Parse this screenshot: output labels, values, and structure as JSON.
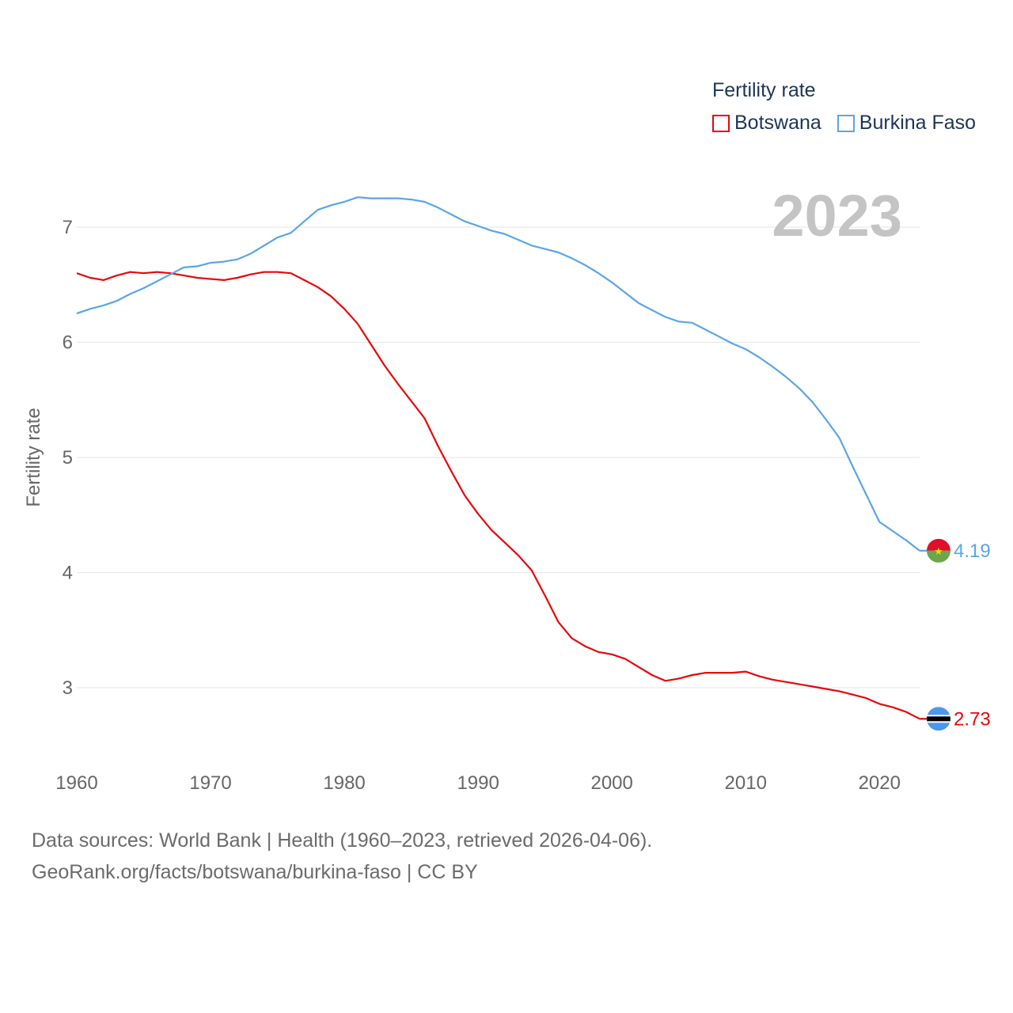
{
  "legend": {
    "title": "Fertility rate",
    "items": [
      {
        "name": "Botswana",
        "color": "#e8060b"
      },
      {
        "name": "Burkina Faso",
        "color": "#5aa5e6"
      }
    ]
  },
  "footer": {
    "line1": "Data sources: World Bank | Health (1960–2023, retrieved 2026-04-06).",
    "line2": "GeoRank.org/facts/botswana/burkina-faso | CC BY"
  },
  "chart_data": {
    "type": "line",
    "title": "",
    "year_overlay": "2023",
    "xlabel": "",
    "ylabel": "Fertility rate",
    "xlim": [
      1960,
      2023
    ],
    "ylim": [
      2.5,
      7.6
    ],
    "xticks": [
      1960,
      1970,
      1980,
      1990,
      2000,
      2010,
      2020
    ],
    "yticks": [
      3,
      4,
      5,
      6,
      7
    ],
    "grid": true,
    "x": [
      1960,
      1961,
      1962,
      1963,
      1964,
      1965,
      1966,
      1967,
      1968,
      1969,
      1970,
      1971,
      1972,
      1973,
      1974,
      1975,
      1976,
      1977,
      1978,
      1979,
      1980,
      1981,
      1982,
      1983,
      1984,
      1985,
      1986,
      1987,
      1988,
      1989,
      1990,
      1991,
      1992,
      1993,
      1994,
      1995,
      1996,
      1997,
      1998,
      1999,
      2000,
      2001,
      2002,
      2003,
      2004,
      2005,
      2006,
      2007,
      2008,
      2009,
      2010,
      2011,
      2012,
      2013,
      2014,
      2015,
      2016,
      2017,
      2018,
      2019,
      2020,
      2021,
      2022,
      2023
    ],
    "series": [
      {
        "name": "Botswana",
        "color": "#e8060b",
        "end_label": "2.73",
        "values": [
          6.6,
          6.56,
          6.54,
          6.58,
          6.61,
          6.6,
          6.61,
          6.6,
          6.58,
          6.56,
          6.55,
          6.54,
          6.56,
          6.59,
          6.61,
          6.61,
          6.6,
          6.54,
          6.48,
          6.4,
          6.29,
          6.16,
          5.98,
          5.8,
          5.64,
          5.49,
          5.34,
          5.1,
          4.88,
          4.67,
          4.51,
          4.37,
          4.26,
          4.15,
          4.02,
          3.8,
          3.57,
          3.43,
          3.36,
          3.31,
          3.29,
          3.25,
          3.18,
          3.11,
          3.06,
          3.08,
          3.11,
          3.13,
          3.13,
          3.13,
          3.14,
          3.1,
          3.07,
          3.05,
          3.03,
          3.01,
          2.99,
          2.97,
          2.94,
          2.91,
          2.86,
          2.83,
          2.79,
          2.73
        ]
      },
      {
        "name": "Burkina Faso",
        "color": "#5aa5e6",
        "end_label": "4.19",
        "values": [
          6.25,
          6.29,
          6.32,
          6.36,
          6.42,
          6.47,
          6.53,
          6.59,
          6.65,
          6.66,
          6.69,
          6.7,
          6.72,
          6.77,
          6.84,
          6.91,
          6.95,
          7.05,
          7.15,
          7.19,
          7.22,
          7.26,
          7.25,
          7.25,
          7.25,
          7.24,
          7.22,
          7.17,
          7.11,
          7.05,
          7.01,
          6.97,
          6.94,
          6.89,
          6.84,
          6.81,
          6.78,
          6.73,
          6.67,
          6.6,
          6.52,
          6.43,
          6.34,
          6.28,
          6.22,
          6.18,
          6.17,
          6.11,
          6.05,
          5.99,
          5.94,
          5.87,
          5.79,
          5.7,
          5.6,
          5.48,
          5.33,
          5.17,
          4.92,
          4.68,
          4.44,
          4.36,
          4.28,
          4.19
        ]
      }
    ]
  }
}
